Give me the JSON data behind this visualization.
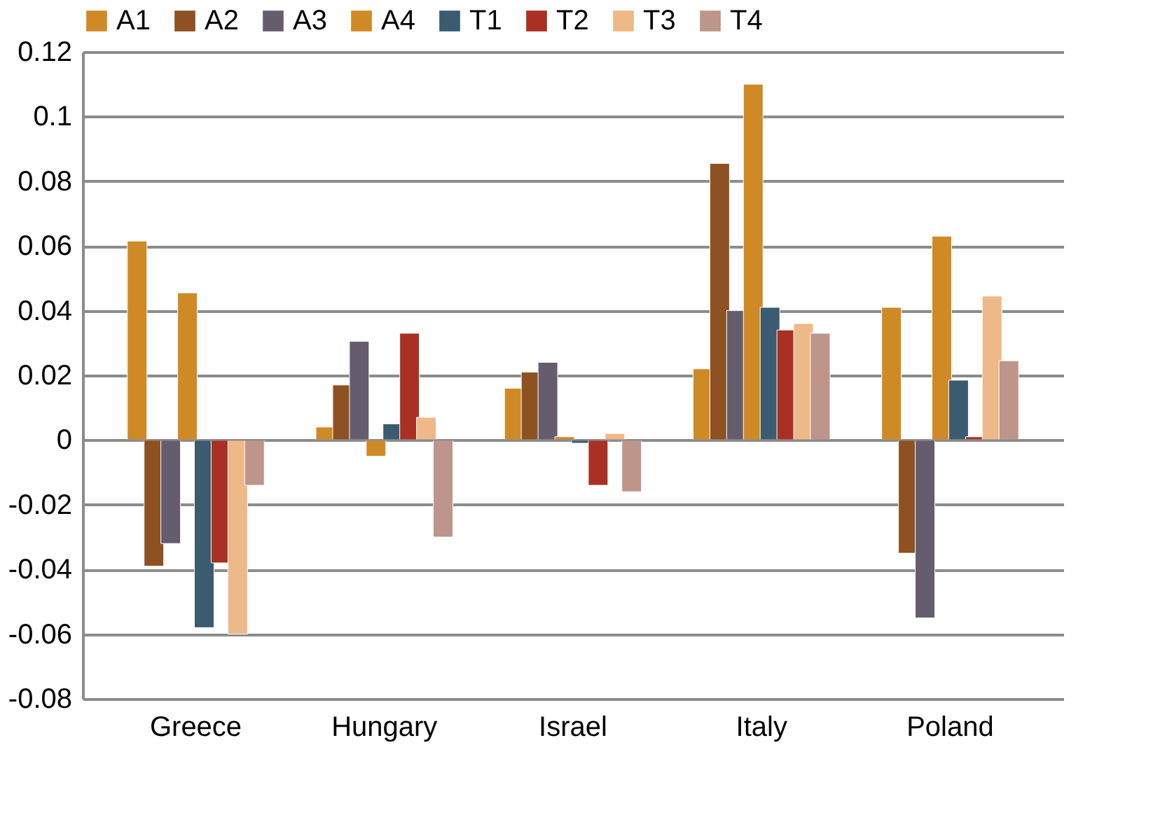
{
  "chart_data": {
    "type": "bar",
    "categories": [
      "Greece",
      "Hungary",
      "Israel",
      "Italy",
      "Poland"
    ],
    "series": [
      {
        "name": "A1",
        "color": "#cf8a26",
        "values": [
          0.0615,
          0.004,
          0.016,
          0.022,
          0.041
        ]
      },
      {
        "name": "A2",
        "color": "#8e5121",
        "values": [
          -0.039,
          0.017,
          0.021,
          0.0855,
          -0.035
        ]
      },
      {
        "name": "A3",
        "color": "#655d6e",
        "values": [
          -0.032,
          0.0305,
          0.024,
          0.04,
          -0.055
        ]
      },
      {
        "name": "A4",
        "color": "#cf8a26",
        "values": [
          0.0455,
          -0.005,
          0.001,
          0.11,
          0.063
        ]
      },
      {
        "name": "T1",
        "color": "#3a5b70",
        "values": [
          -0.058,
          0.005,
          -0.001,
          0.041,
          0.0185
        ]
      },
      {
        "name": "T2",
        "color": "#a93023",
        "values": [
          -0.038,
          0.033,
          -0.014,
          0.034,
          0.001
        ]
      },
      {
        "name": "T3",
        "color": "#eeb988",
        "values": [
          -0.06,
          0.007,
          0.002,
          0.036,
          0.0445
        ]
      },
      {
        "name": "T4",
        "color": "#be958a",
        "values": [
          -0.014,
          -0.03,
          -0.016,
          0.033,
          0.0245
        ]
      }
    ],
    "ylim": [
      -0.08,
      0.12
    ],
    "yticks": [
      -0.08,
      -0.06,
      -0.04,
      -0.02,
      0,
      0.02,
      0.04,
      0.06,
      0.08,
      0.1,
      0.12
    ],
    "grid": "y",
    "legend": "top"
  }
}
